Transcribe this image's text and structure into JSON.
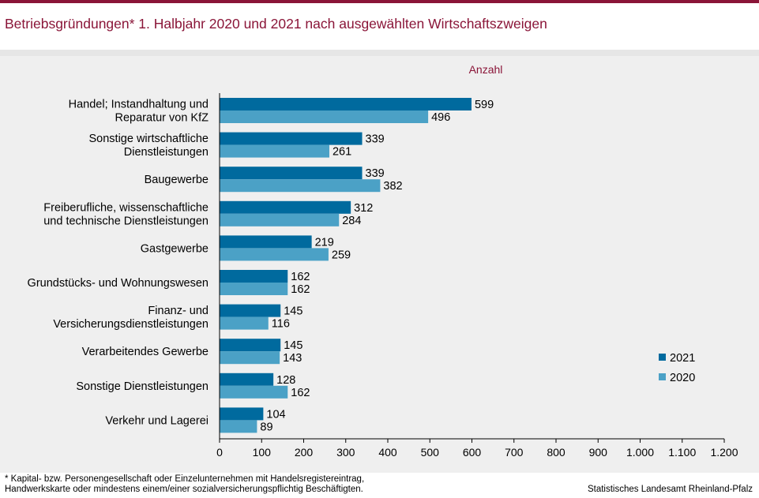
{
  "header": {
    "title": "Betriebsgründungen* 1. Halbjahr 2020 und 2021 nach ausgewählten Wirtschaftszweigen"
  },
  "chart_data": {
    "type": "bar",
    "orientation": "horizontal",
    "unit_label": "Anzahl",
    "categories": [
      [
        "Handel; Instandhaltung und",
        "Reparatur von KfZ"
      ],
      [
        "Sonstige wirtschaftliche",
        "Dienstleistungen"
      ],
      [
        "Baugewerbe"
      ],
      [
        "Freiberufliche, wissenschaftliche",
        "und technische Dienstleistungen"
      ],
      [
        "Gastgewerbe"
      ],
      [
        "Grundstücks- und Wohnungswesen"
      ],
      [
        "Finanz- und",
        "Versicherungsdienstleistungen"
      ],
      [
        "Verarbeitendes Gewerbe"
      ],
      [
        "Sonstige Dienstleistungen"
      ],
      [
        "Verkehr und Lagerei"
      ]
    ],
    "series": [
      {
        "name": "2021",
        "color": "#006a9e",
        "values": [
          599,
          339,
          339,
          312,
          219,
          162,
          145,
          145,
          128,
          104
        ]
      },
      {
        "name": "2020",
        "color": "#4ba1c6",
        "values": [
          496,
          261,
          382,
          284,
          259,
          162,
          116,
          143,
          162,
          89
        ]
      }
    ],
    "xlim": [
      0,
      1200
    ],
    "xticks": [
      "0",
      "100",
      "200",
      "300",
      "400",
      "500",
      "600",
      "700",
      "800",
      "900",
      "1.000",
      "1.100",
      "1.200"
    ],
    "grid": false,
    "legend_position": "right"
  },
  "footnote": "* Kapital- bzw. Personengesellschaft oder Einzelunternehmen mit Handelsregistereintrag,\nHandwerkskarte oder mindestens einem/einer sozialversicherungspflichtig Beschäftigten.",
  "source": "Statistisches Landesamt Rheinland-Pfalz"
}
